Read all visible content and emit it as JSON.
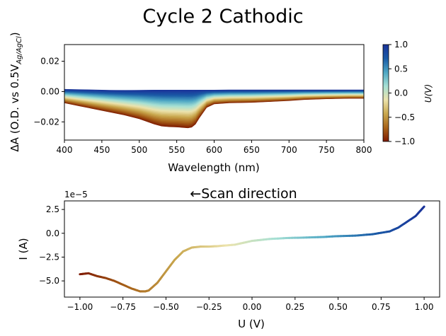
{
  "figure": {
    "title": "Cycle 2 Cathodic"
  },
  "chart_data": [
    {
      "type": "area",
      "title": "Cycle 2 Cathodic",
      "xlabel": "Wavelength (nm)",
      "ylabel": "ΔA (O.D. vs 0.5V",
      "ylabel_subscript": "Ag/AgCl",
      "ylabel_close": ")",
      "xlim": [
        400,
        800
      ],
      "ylim": [
        -0.032,
        0.031
      ],
      "xticks": [
        400,
        450,
        500,
        550,
        600,
        650,
        700,
        750,
        800
      ],
      "xtick_labels": [
        "400",
        "450",
        "500",
        "550",
        "600",
        "650",
        "700",
        "750",
        "800"
      ],
      "yticks": [
        0.02,
        0.0,
        -0.02
      ],
      "ytick_labels": [
        "0.02",
        "0.00",
        "−0.02"
      ],
      "grid": false,
      "colormap": "roma",
      "colorbar": {
        "label": "U(V)",
        "range": [
          -1.0,
          1.0
        ],
        "ticks": [
          1.0,
          0.5,
          0.0,
          -0.5,
          -1.0
        ],
        "tick_labels": [
          "1.0",
          "0.5",
          "0.0",
          "−0.5",
          "−1.0"
        ],
        "colors": [
          "#7e1900",
          "#a8641a",
          "#c9a84f",
          "#ece3ac",
          "#a6e0d4",
          "#4ea7c4",
          "#1a5aa6",
          "#1a3399"
        ]
      },
      "envelope": {
        "x": [
          400,
          420,
          440,
          460,
          480,
          500,
          520,
          530,
          540,
          550,
          560,
          565,
          570,
          575,
          580,
          590,
          600,
          620,
          650,
          680,
          700,
          720,
          750,
          780,
          800
        ],
        "lower": [
          -0.0075,
          -0.0095,
          -0.0115,
          -0.0135,
          -0.0155,
          -0.018,
          -0.0215,
          -0.0228,
          -0.0232,
          -0.0234,
          -0.0238,
          -0.024,
          -0.0235,
          -0.0215,
          -0.0175,
          -0.0105,
          -0.0082,
          -0.0075,
          -0.0072,
          -0.0065,
          -0.006,
          -0.0053,
          -0.0048,
          -0.0045,
          -0.0045
        ],
        "upper": [
          0.0015,
          0.0013,
          0.0011,
          0.0009,
          0.0008,
          0.0009,
          0.001,
          0.001,
          0.001,
          0.001,
          0.001,
          0.001,
          0.001,
          0.001,
          0.001,
          0.001,
          0.001,
          0.0011,
          0.0011,
          0.0011,
          0.0011,
          0.0011,
          0.0011,
          0.0011,
          0.0011
        ]
      }
    },
    {
      "type": "line",
      "title": "←Scan direction",
      "xlabel": "U (V)",
      "ylabel": "I (A)",
      "y_scale_label": "1e−5",
      "xlim": [
        -1.09,
        1.09
      ],
      "ylim": [
        -6.7,
        3.4
      ],
      "xticks": [
        -1.0,
        -0.75,
        -0.5,
        -0.25,
        0.0,
        0.25,
        0.5,
        0.75,
        1.0
      ],
      "xtick_labels": [
        "−1.00",
        "−0.75",
        "−0.50",
        "−0.25",
        "0.00",
        "0.25",
        "0.50",
        "0.75",
        "1.00"
      ],
      "yticks": [
        2.5,
        0.0,
        -2.5,
        -5.0
      ],
      "ytick_labels": [
        "2.5",
        "0.0",
        "−2.5",
        "−5.0"
      ],
      "grid": false,
      "colormap": "roma",
      "x": [
        -1.0,
        -0.95,
        -0.9,
        -0.85,
        -0.8,
        -0.75,
        -0.7,
        -0.65,
        -0.62,
        -0.6,
        -0.55,
        -0.5,
        -0.45,
        -0.4,
        -0.35,
        -0.3,
        -0.25,
        -0.2,
        -0.1,
        0.0,
        0.1,
        0.2,
        0.3,
        0.4,
        0.5,
        0.6,
        0.7,
        0.8,
        0.85,
        0.9,
        0.95,
        0.98,
        1.0
      ],
      "values": [
        -4.3,
        -4.2,
        -4.5,
        -4.7,
        -5.0,
        -5.4,
        -5.8,
        -6.1,
        -6.1,
        -6.0,
        -5.2,
        -4.0,
        -2.8,
        -1.9,
        -1.5,
        -1.4,
        -1.4,
        -1.35,
        -1.2,
        -0.8,
        -0.6,
        -0.5,
        -0.45,
        -0.4,
        -0.3,
        -0.25,
        -0.1,
        0.2,
        0.6,
        1.2,
        1.8,
        2.4,
        2.8
      ]
    }
  ]
}
